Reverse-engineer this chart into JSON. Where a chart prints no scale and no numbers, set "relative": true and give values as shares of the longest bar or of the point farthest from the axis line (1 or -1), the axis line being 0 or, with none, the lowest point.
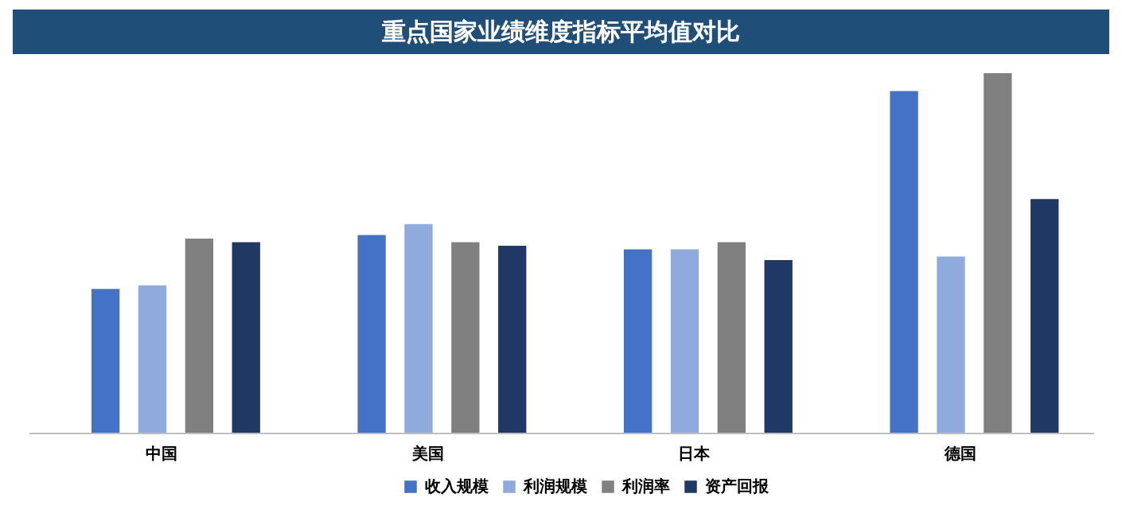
{
  "chart_data": {
    "type": "bar",
    "title": "重点国家业绩维度指标平均值对比",
    "relative": true,
    "categories": [
      "中国",
      "美国",
      "日本",
      "德国"
    ],
    "series": [
      {
        "name": "收入规模",
        "color": "#4472c4",
        "values": [
          0.4,
          0.55,
          0.51,
          0.95
        ]
      },
      {
        "name": "利润规模",
        "color": "#8faadc",
        "values": [
          0.41,
          0.58,
          0.51,
          0.49
        ]
      },
      {
        "name": "利润率",
        "color": "#808080",
        "values": [
          0.54,
          0.53,
          0.53,
          1
        ]
      },
      {
        "name": "资产回报",
        "color": "#1f3864",
        "values": [
          0.53,
          0.52,
          0.48,
          0.65
        ]
      }
    ],
    "legend": "bottom"
  }
}
